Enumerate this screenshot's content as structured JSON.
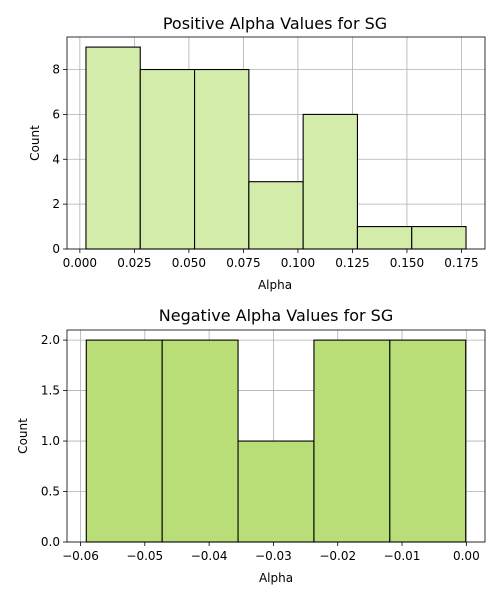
{
  "chart_data": [
    {
      "type": "bar",
      "title": "Positive Alpha Values for SG",
      "xlabel": "Alpha",
      "ylabel": "Count",
      "bin_edges": [
        0.0028,
        0.0277,
        0.0526,
        0.0775,
        0.1024,
        0.1273,
        0.1522,
        0.1771
      ],
      "values": [
        9,
        8,
        8,
        3,
        6,
        1,
        1
      ],
      "xlim": [
        -0.0059,
        0.1858
      ],
      "ylim": [
        0,
        9.45
      ],
      "xticks": [
        0.0,
        0.025,
        0.05,
        0.075,
        0.1,
        0.125,
        0.15,
        0.175
      ],
      "xtick_labels": [
        "0.000",
        "0.025",
        "0.050",
        "0.075",
        "0.100",
        "0.125",
        "0.150",
        "0.175"
      ],
      "yticks": [
        0,
        2,
        4,
        6,
        8
      ],
      "ytick_labels": [
        "0",
        "2",
        "4",
        "6",
        "8"
      ],
      "bar_color": "#d4ecaa",
      "grid": true
    },
    {
      "type": "bar",
      "title": "Negative Alpha Values for SG",
      "xlabel": "Alpha",
      "ylabel": "Count",
      "bin_edges": [
        -0.0591,
        -0.0473,
        -0.0355,
        -0.0237,
        -0.0119,
        -0.0001
      ],
      "values": [
        2,
        2,
        1,
        2,
        2
      ],
      "xlim": [
        -0.0621,
        0.0029
      ],
      "ylim": [
        0,
        2.1
      ],
      "xticks": [
        -0.06,
        -0.05,
        -0.04,
        -0.03,
        -0.02,
        -0.01,
        0.0
      ],
      "xtick_labels": [
        "−0.06",
        "−0.05",
        "−0.04",
        "−0.03",
        "−0.02",
        "−0.01",
        "0.00"
      ],
      "yticks": [
        0,
        0.5,
        1.0,
        1.5,
        2.0
      ],
      "ytick_labels": [
        "0.0",
        "0.5",
        "1.0",
        "1.5",
        "2.0"
      ],
      "bar_color": "#bade77",
      "grid": true
    }
  ]
}
